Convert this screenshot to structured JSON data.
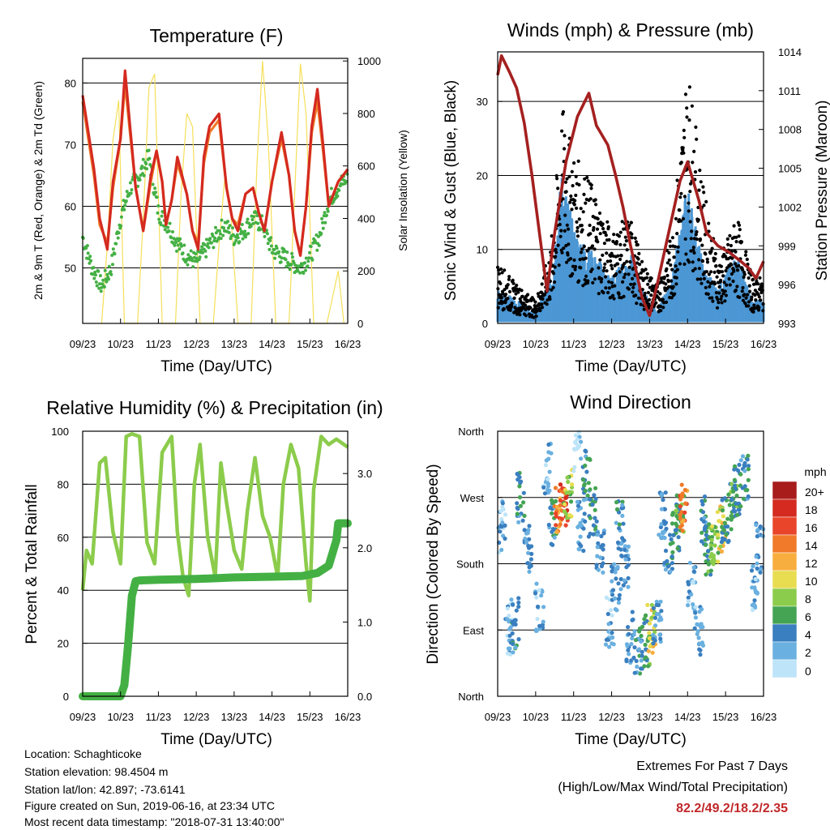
{
  "x_ticks": [
    "09/23",
    "10/23",
    "11/23",
    "12/23",
    "13/23",
    "14/23",
    "15/23",
    "16/23"
  ],
  "temperature": {
    "title": "Temperature (F)",
    "ylabel_left": "2m & 9m T (Red, Orange) & 2m Td (Green)",
    "ylabel_right": "Solar Insolation (Yellow)",
    "xlabel": "Time (Day/UTC)",
    "left_ticks": [
      "50",
      "60",
      "70",
      "80"
    ],
    "right_ticks": [
      "0",
      "200",
      "400",
      "600",
      "800",
      "1000"
    ],
    "colors": {
      "t2m": "#d42a20",
      "t9m": "#f07a2a",
      "td": "#44b044",
      "solar": "#f5df5a"
    }
  },
  "winds": {
    "title": "Winds (mph) & Pressure (mb)",
    "ylabel_left": "Sonic Wind & Gust (Blue, Black)",
    "ylabel_right": "Station Pressure (Maroon)",
    "xlabel": "Time (Day/UTC)",
    "left_ticks": [
      "0",
      "10",
      "20",
      "30"
    ],
    "right_ticks": [
      "993",
      "996",
      "999",
      "1002",
      "1005",
      "1008",
      "1011",
      "1014"
    ],
    "colors": {
      "wind": "#4c97d4",
      "gust": "#000000",
      "pressure": "#a52020"
    }
  },
  "humidity": {
    "title": "Relative Humidity (%) & Precipitation (in)",
    "ylabel_left": "Percent & Total Rainfall",
    "xlabel": "Time (Day/UTC)",
    "left_ticks": [
      "0",
      "20",
      "40",
      "60",
      "80",
      "100"
    ],
    "right_ticks": [
      "0.0",
      "1.0",
      "2.0",
      "3.0"
    ],
    "colors": {
      "rh": "#8ccc4c",
      "precip": "#44b044"
    }
  },
  "direction": {
    "title": "Wind Direction",
    "ylabel": "Direction (Colored By Speed)",
    "xlabel": "Time (Day/UTC)",
    "y_ticks": [
      "North",
      "East",
      "South",
      "West",
      "North"
    ],
    "legend_title": "mph",
    "legend_labels": [
      "20+",
      "18",
      "16",
      "14",
      "12",
      "10",
      "8",
      "6",
      "4",
      "2",
      "0"
    ],
    "legend_colors": [
      "#a81c1c",
      "#d42a20",
      "#e8452a",
      "#f07a2a",
      "#f8ae3e",
      "#e8dc50",
      "#8ccc4c",
      "#44a454",
      "#3a7fc0",
      "#6ab0e0",
      "#bde4f8"
    ]
  },
  "info": {
    "location": "Location: Schaghticoke",
    "elevation": "Station elevation: 98.4504 m",
    "latlon": "Station lat/lon: 42.897; -73.6141",
    "created": "Figure created on Sun, 2019-06-16, at 23:34 UTC",
    "recent": "Most recent data timestamp: \"2018-07-31 13:40:00\""
  },
  "extremes": {
    "title": "Extremes For Past 7 Days",
    "subtitle": "(High/Low/Max Wind/Total Precipitation)",
    "values": "82.2/49.2/18.2/2.35"
  },
  "chart_data": [
    {
      "type": "line",
      "title": "Temperature (F)",
      "xlabel": "Time (Day/UTC)",
      "x_unit": "days after 09/23 00 UTC",
      "ylim": [
        41,
        84
      ],
      "y2lim": [
        0,
        1010
      ],
      "series": [
        {
          "name": "2m T",
          "axis": "left",
          "x": [
            0,
            0.15,
            0.3,
            0.45,
            0.65,
            0.8,
            1.0,
            1.12,
            1.25,
            1.4,
            1.6,
            1.8,
            1.95,
            2.1,
            2.2,
            2.35,
            2.5,
            2.75,
            2.9,
            3.05,
            3.2,
            3.35,
            3.6,
            3.8,
            3.95,
            4.1,
            4.3,
            4.5,
            4.65,
            4.8,
            5.0,
            5.25,
            5.45,
            5.6,
            5.75,
            5.9,
            6.05,
            6.2,
            6.35,
            6.5,
            6.75,
            7.0
          ],
          "y": [
            78,
            72,
            66,
            58,
            53,
            64,
            71,
            82,
            73,
            63,
            56,
            65,
            69,
            64,
            57,
            61,
            68,
            62,
            56,
            53,
            68,
            73,
            75,
            63,
            58,
            56,
            62,
            63,
            59,
            56,
            64,
            72,
            65,
            56,
            52,
            60,
            73,
            79,
            70,
            60,
            64,
            66
          ]
        },
        {
          "name": "9m T",
          "axis": "left",
          "x": [
            0,
            0.15,
            0.3,
            0.45,
            0.65,
            0.8,
            1.0,
            1.12,
            1.25,
            1.4,
            1.6,
            1.8,
            1.95,
            2.1,
            2.2,
            2.35,
            2.5,
            2.75,
            2.9,
            3.05,
            3.2,
            3.35,
            3.6,
            3.8,
            3.95,
            4.1,
            4.3,
            4.5,
            4.65,
            4.8,
            5.0,
            5.25,
            5.45,
            5.6,
            5.75,
            5.9,
            6.05,
            6.2,
            6.35,
            6.5,
            6.75,
            7.0
          ],
          "y": [
            77,
            71,
            65,
            57,
            54,
            63,
            71,
            80,
            72,
            63,
            56,
            64,
            69,
            64,
            57,
            61,
            67,
            62,
            56,
            54,
            67,
            72,
            74,
            63,
            58,
            57,
            62,
            63,
            59,
            56,
            64,
            71,
            65,
            56,
            52,
            60,
            72,
            77,
            69,
            60,
            64,
            66
          ]
        },
        {
          "name": "2m Td",
          "axis": "left",
          "x": [
            0,
            0.25,
            0.5,
            0.75,
            1.0,
            1.25,
            1.5,
            1.75,
            2.0,
            2.25,
            2.5,
            2.75,
            3.0,
            3.25,
            3.5,
            3.75,
            4.0,
            4.25,
            4.5,
            4.75,
            5.0,
            5.25,
            5.5,
            5.75,
            6.0,
            6.25,
            6.5,
            6.75,
            7.0
          ],
          "y": [
            55,
            50,
            47,
            50,
            58,
            63,
            65,
            68,
            59,
            57,
            54,
            52,
            51,
            53,
            55,
            57,
            55,
            56,
            58,
            57,
            53,
            52,
            51,
            50,
            52,
            55,
            61,
            63,
            65
          ]
        },
        {
          "name": "Solar Insolation",
          "axis": "right",
          "x": [
            0.5,
            0.65,
            0.8,
            0.95,
            1.1,
            1.45,
            1.6,
            1.75,
            1.9,
            2.1,
            2.45,
            2.6,
            2.75,
            2.9,
            3.1,
            3.45,
            3.6,
            3.75,
            3.9,
            4.1,
            4.45,
            4.6,
            4.75,
            4.9,
            5.1,
            5.45,
            5.6,
            5.75,
            5.9,
            6.1,
            6.45,
            6.6,
            6.75,
            6.9
          ],
          "y": [
            0,
            300,
            700,
            850,
            0,
            0,
            400,
            900,
            950,
            0,
            0,
            500,
            800,
            750,
            0,
            0,
            300,
            550,
            450,
            0,
            0,
            600,
            1000,
            700,
            0,
            0,
            500,
            990,
            800,
            0,
            0,
            100,
            200,
            0
          ]
        }
      ]
    },
    {
      "type": "scatter",
      "title": "Winds (mph) & Pressure (mb)",
      "xlabel": "Time (Day/UTC)",
      "x_unit": "days after 09/23 00 UTC",
      "ylim": [
        0,
        36.7
      ],
      "y2lim": [
        993,
        1014
      ],
      "series": [
        {
          "name": "Sonic Wind",
          "axis": "left",
          "x": [
            0,
            0.5,
            1.0,
            1.4,
            1.7,
            2.0,
            2.5,
            3.0,
            3.5,
            3.8,
            4.2,
            4.6,
            5.0,
            5.4,
            5.8,
            6.3,
            6.7,
            7.0
          ],
          "y": [
            3,
            2,
            1,
            4,
            13,
            8,
            6,
            4,
            6,
            3,
            1,
            4,
            12,
            5,
            3,
            6,
            2,
            2
          ]
        },
        {
          "name": "Gust",
          "axis": "left",
          "x": [
            0,
            0.5,
            1.0,
            1.4,
            1.7,
            2.0,
            2.5,
            3.0,
            3.5,
            3.8,
            4.2,
            4.6,
            5.0,
            5.4,
            5.8,
            6.3,
            6.7,
            7.0
          ],
          "y": [
            8,
            5,
            3,
            10,
            28,
            22,
            18,
            12,
            14,
            8,
            5,
            12,
            34,
            18,
            8,
            14,
            6,
            6
          ]
        },
        {
          "name": "Station Pressure",
          "axis": "right",
          "x": [
            0,
            0.1,
            0.3,
            0.5,
            0.7,
            0.9,
            1.1,
            1.3,
            1.5,
            1.8,
            2.1,
            2.4,
            2.6,
            2.9,
            3.1,
            3.3,
            3.5,
            3.8,
            4.0,
            4.2,
            4.5,
            4.8,
            5.0,
            5.3,
            5.5,
            5.8,
            6.1,
            6.4,
            6.6,
            6.8,
            7.0
          ],
          "y": [
            1012.2,
            1013.7,
            1012.5,
            1011.2,
            1008.5,
            1004.5,
            1000,
            995.5,
            1000,
            1005.5,
            1009,
            1010.8,
            1008.3,
            1006.8,
            1004.5,
            1002,
            999,
            995,
            993.6,
            996,
            1000,
            1004,
            1005.5,
            1002.5,
            1000,
            999,
            998.5,
            997.8,
            997.3,
            996.5,
            997.8
          ]
        }
      ]
    },
    {
      "type": "line",
      "title": "Relative Humidity (%) & Precipitation (in)",
      "xlabel": "Time (Day/UTC)",
      "x_unit": "days after 09/23 00 UTC",
      "ylim": [
        0,
        100
      ],
      "y2lim": [
        0,
        3.57
      ],
      "series": [
        {
          "name": "Relative Humidity",
          "axis": "left",
          "x": [
            0,
            0.1,
            0.25,
            0.45,
            0.6,
            0.8,
            1.0,
            1.15,
            1.3,
            1.5,
            1.7,
            1.9,
            2.1,
            2.35,
            2.5,
            2.65,
            2.8,
            2.95,
            3.1,
            3.3,
            3.5,
            3.65,
            3.8,
            4.0,
            4.2,
            4.35,
            4.55,
            4.75,
            4.95,
            5.15,
            5.3,
            5.5,
            5.7,
            5.9,
            6.0,
            6.1,
            6.3,
            6.5,
            6.7,
            7.0
          ],
          "y": [
            40,
            55,
            50,
            88,
            90,
            62,
            50,
            98,
            99,
            98,
            58,
            50,
            92,
            98,
            62,
            45,
            38,
            80,
            95,
            60,
            45,
            88,
            73,
            55,
            48,
            70,
            90,
            68,
            60,
            45,
            80,
            95,
            86,
            50,
            36,
            78,
            98,
            95,
            97,
            94
          ]
        },
        {
          "name": "Total Precipitation",
          "axis": "right",
          "x": [
            0,
            1.0,
            1.1,
            1.2,
            1.3,
            1.4,
            1.5,
            2.0,
            3.0,
            4.0,
            5.0,
            5.8,
            6.2,
            6.5,
            6.7,
            6.75,
            7.0
          ],
          "y": [
            0,
            0,
            0.15,
            0.7,
            1.35,
            1.55,
            1.56,
            1.57,
            1.58,
            1.6,
            1.61,
            1.62,
            1.66,
            1.76,
            2.1,
            2.33,
            2.33
          ]
        }
      ]
    },
    {
      "type": "scatter",
      "title": "Wind Direction",
      "xlabel": "Time (Day/UTC)",
      "ylabel": "Direction (Colored By Speed)",
      "x_unit": "days after 09/23 00 UTC",
      "y_unit": "degrees (North at 0 on the bottom, then East, South, West, North at 360)",
      "ylim": [
        0,
        360
      ],
      "series": [
        {
          "name": "direction",
          "x": [
            0.1,
            0.3,
            0.45,
            0.6,
            0.8,
            1.1,
            1.3,
            1.45,
            1.6,
            1.75,
            1.85,
            2.1,
            2.2,
            2.35,
            2.5,
            2.7,
            2.95,
            3.1,
            3.2,
            3.35,
            3.5,
            3.7,
            3.9,
            4.05,
            4.2,
            4.35,
            4.5,
            4.7,
            4.8,
            4.9,
            5.1,
            5.3,
            5.45,
            5.55,
            5.7,
            5.9,
            6.0,
            6.2,
            6.3,
            6.5,
            6.8,
            6.9
          ],
          "y": [
            230,
            90,
            100,
            270,
            200,
            120,
            310,
            240,
            255,
            265,
            275,
            340,
            230,
            300,
            250,
            200,
            100,
            150,
            230,
            180,
            80,
            60,
            75,
            90,
            100,
            250,
            200,
            230,
            245,
            260,
            150,
            90,
            240,
            200,
            210,
            230,
            240,
            260,
            280,
            300,
            150,
            200
          ],
          "speed": [
            2,
            2,
            4,
            4,
            3,
            2,
            2,
            4,
            14,
            16,
            8,
            0,
            3,
            4,
            5,
            3,
            2,
            3,
            4,
            3,
            3,
            4,
            6,
            10,
            3,
            3,
            4,
            5,
            6,
            14,
            2,
            3,
            4,
            6,
            8,
            10,
            5,
            6,
            5,
            4,
            2,
            3
          ]
        }
      ]
    }
  ]
}
